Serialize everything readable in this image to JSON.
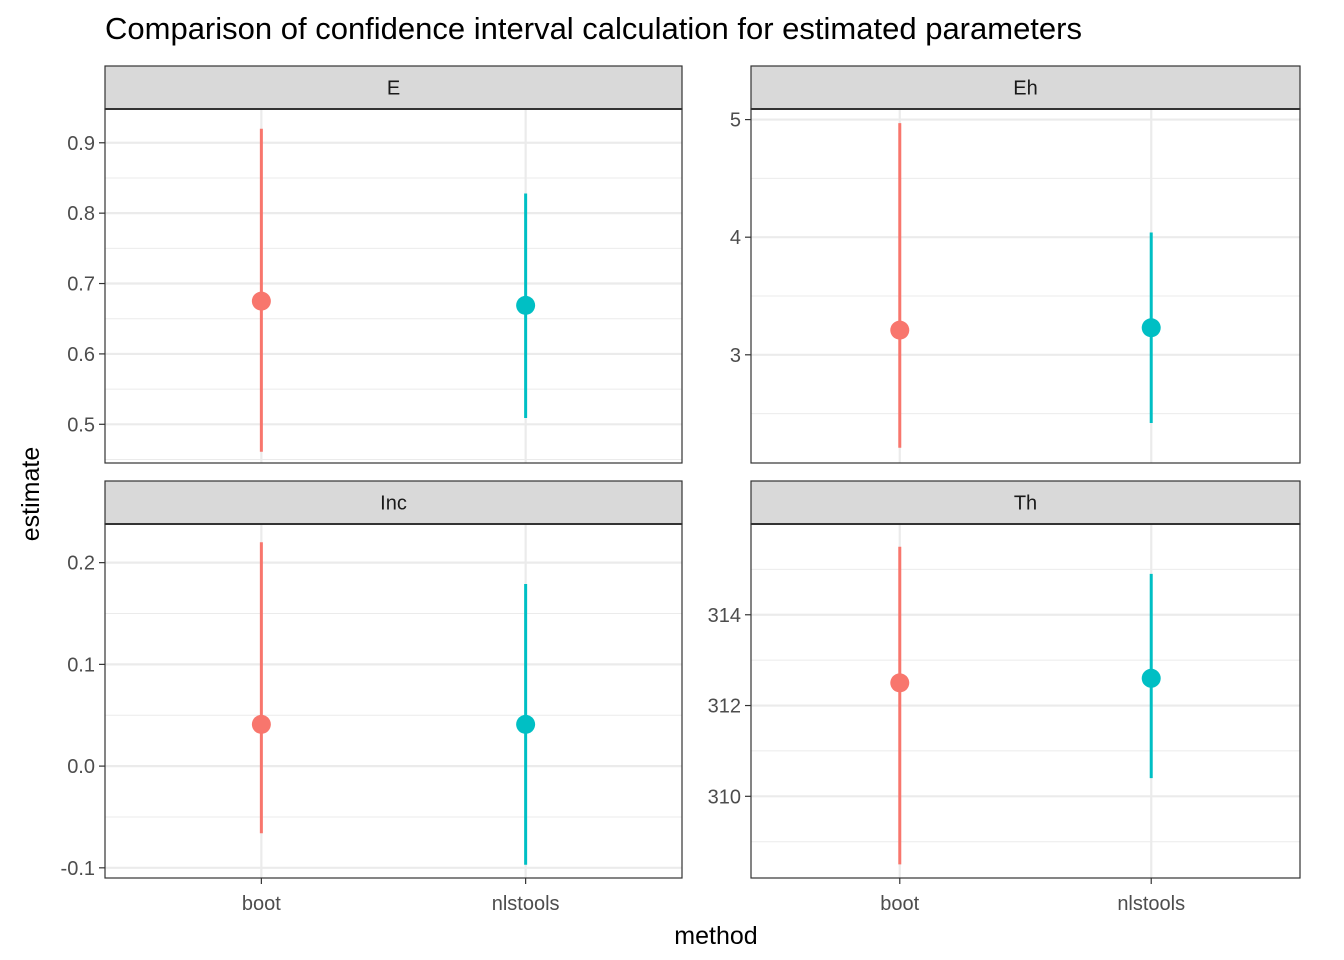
{
  "chart_data": {
    "type": "pointrange",
    "title": "Comparison of confidence interval calculation for estimated parameters",
    "xlabel": "method",
    "ylabel": "estimate",
    "categories": [
      "boot",
      "nlstools"
    ],
    "colors": {
      "boot": "#F8766D",
      "nlstools": "#00BFC4"
    },
    "grid": true,
    "legend": "none",
    "facets": [
      {
        "name": "E",
        "ylim": [
          0.445,
          0.948
        ],
        "major_ticks": [
          0.5,
          0.6,
          0.7,
          0.8,
          0.9
        ],
        "tick_labels": [
          "0.5",
          "0.6",
          "0.7",
          "0.8",
          "0.9"
        ],
        "minor_ticks": [
          0.45,
          0.55,
          0.65,
          0.75,
          0.85
        ],
        "points": [
          {
            "method": "boot",
            "estimate": 0.675,
            "lower": 0.461,
            "upper": 0.92
          },
          {
            "method": "nlstools",
            "estimate": 0.669,
            "lower": 0.509,
            "upper": 0.828
          }
        ]
      },
      {
        "name": "Eh",
        "ylim": [
          2.08,
          5.09
        ],
        "major_ticks": [
          3,
          4,
          5
        ],
        "tick_labels": [
          "3",
          "4",
          "5"
        ],
        "minor_ticks": [
          2.5,
          3.5,
          4.5
        ],
        "points": [
          {
            "method": "boot",
            "estimate": 3.21,
            "lower": 2.21,
            "upper": 4.97
          },
          {
            "method": "nlstools",
            "estimate": 3.23,
            "lower": 2.42,
            "upper": 4.04
          }
        ]
      },
      {
        "name": "Inc",
        "ylim": [
          -0.11,
          0.238
        ],
        "major_ticks": [
          -0.1,
          0.0,
          0.1,
          0.2
        ],
        "tick_labels": [
          "-0.1",
          "0.0",
          "0.1",
          "0.2"
        ],
        "minor_ticks": [
          -0.05,
          0.05,
          0.15
        ],
        "points": [
          {
            "method": "boot",
            "estimate": 0.041,
            "lower": -0.066,
            "upper": 0.22
          },
          {
            "method": "nlstools",
            "estimate": 0.041,
            "lower": -0.097,
            "upper": 0.179
          }
        ]
      },
      {
        "name": "Th",
        "ylim": [
          308.2,
          316.0
        ],
        "major_ticks": [
          310,
          312,
          314
        ],
        "tick_labels": [
          "310",
          "312",
          "314"
        ],
        "minor_ticks": [
          309,
          311,
          313,
          315
        ],
        "points": [
          {
            "method": "boot",
            "estimate": 312.5,
            "lower": 308.5,
            "upper": 315.5
          },
          {
            "method": "nlstools",
            "estimate": 312.6,
            "lower": 310.4,
            "upper": 314.9
          }
        ]
      }
    ]
  }
}
